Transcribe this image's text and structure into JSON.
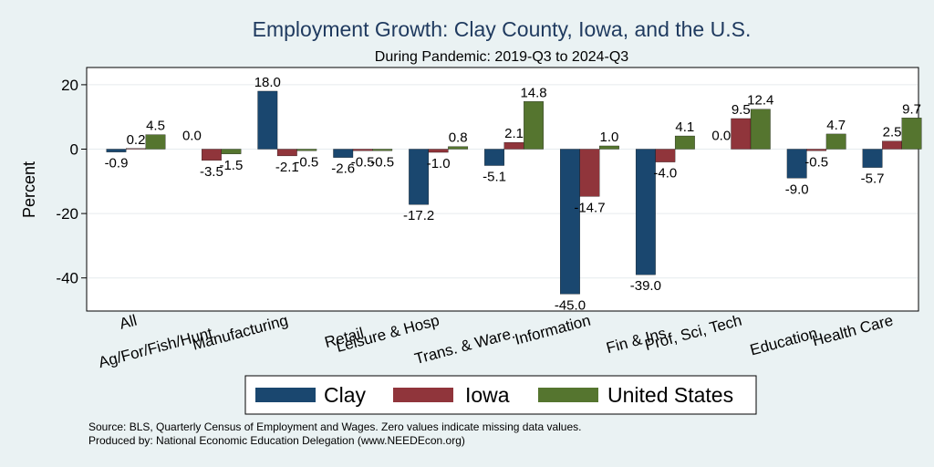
{
  "chart_data": {
    "type": "bar",
    "title": "Employment Growth: Clay County, Iowa, and the U.S.",
    "subtitle": "During Pandemic: 2019-Q3 to 2024-Q3",
    "ylabel": "Percent",
    "xlabel": "",
    "ylim": [
      -50,
      25
    ],
    "yticks": [
      20,
      0,
      -20,
      -40
    ],
    "grid": true,
    "categories": [
      "All",
      "Ag/For/Fish/Hunt",
      "Manufacturing",
      "Retail",
      "Leisure & Hosp",
      "Trans. & Ware.",
      "Information",
      "Fin & Ins",
      "Prof, Sci, Tech",
      "Education",
      "Health Care"
    ],
    "series": [
      {
        "name": "Clay",
        "color": "#1a476f",
        "values": [
          -0.9,
          0.0,
          18.0,
          -2.6,
          -17.2,
          -5.1,
          -45.0,
          -39.0,
          0.0,
          -9.0,
          -5.7
        ]
      },
      {
        "name": "Iowa",
        "color": "#90353b",
        "values": [
          0.2,
          -3.5,
          -2.1,
          -0.5,
          -1.0,
          2.1,
          -14.7,
          -4.0,
          9.5,
          -0.5,
          2.5
        ]
      },
      {
        "name": "United States",
        "color": "#55752f",
        "values": [
          4.5,
          -1.5,
          -0.5,
          -0.5,
          0.8,
          14.8,
          1.0,
          4.1,
          12.4,
          4.7,
          9.7
        ]
      }
    ],
    "legend_position": "bottom",
    "notes": [
      "Source: BLS, Quarterly Census of Employment and Wages. Zero values indicate missing data values.",
      "Produced by: National Economic Education Delegation (www.NEEDEcon.org)"
    ]
  }
}
